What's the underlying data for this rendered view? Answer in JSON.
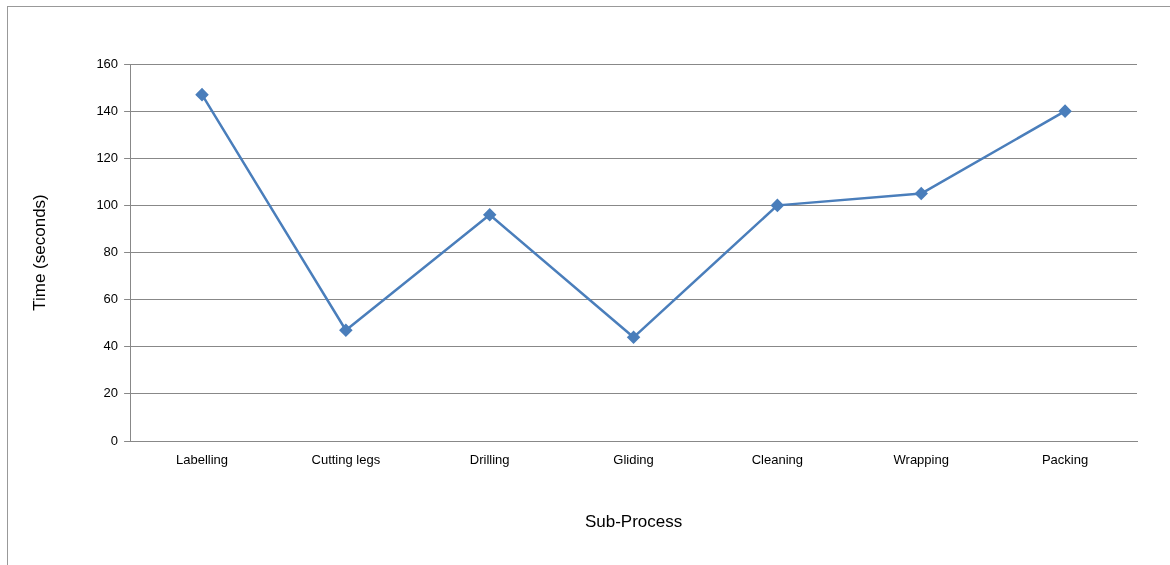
{
  "chart_data": {
    "type": "line",
    "xlabel": "Sub-Process",
    "ylabel": "Time (seconds)",
    "categories": [
      "Labelling",
      "Cutting legs",
      "Drilling",
      "Gliding",
      "Cleaning",
      "Wrapping",
      "Packing"
    ],
    "series": [
      {
        "color": "#4a7ebb",
        "values": [
          147,
          47,
          96,
          44,
          100,
          105,
          140
        ]
      }
    ],
    "ylim": [
      0,
      160
    ],
    "yticks": [
      0,
      20,
      40,
      60,
      80,
      100,
      120,
      140,
      160
    ],
    "grid": "y",
    "legend": false,
    "marker": "diamond",
    "line_style": "solid"
  }
}
